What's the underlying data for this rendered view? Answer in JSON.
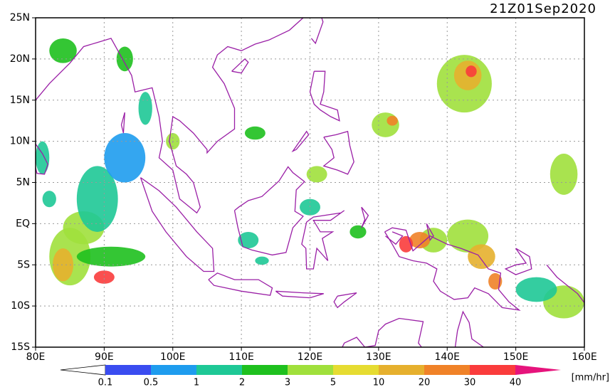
{
  "title": "21Z01Sep2020",
  "map": {
    "lat_labels": [
      "25N",
      "20N",
      "15N",
      "10N",
      "5N",
      "EQ",
      "5S",
      "10S",
      "15S"
    ],
    "lon_labels": [
      "80E",
      "90E",
      "100E",
      "110E",
      "120E",
      "130E",
      "140E",
      "150E",
      "160E"
    ]
  },
  "colorbar": {
    "labels": [
      "0.1",
      "0.5",
      "1",
      "2",
      "3",
      "5",
      "10",
      "20",
      "30",
      "40"
    ],
    "colors": [
      "#ffffff",
      "#3a4cf0",
      "#1e9cee",
      "#1ec896",
      "#1ec01e",
      "#a0e03c",
      "#e6dc32",
      "#e6b02e",
      "#f08228",
      "#fa3c3c",
      "#e6147c"
    ],
    "unit": "[mm/hr]"
  }
}
